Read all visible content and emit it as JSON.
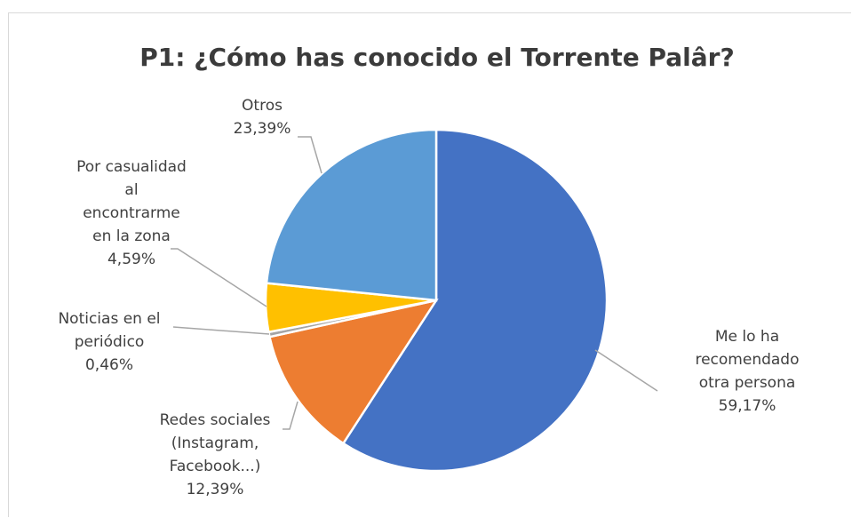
{
  "chart_data": {
    "type": "pie",
    "title": "P1: ¿Cómo has conocido el Torrente Palâr?",
    "slices": [
      {
        "label": "Me lo ha recomendado otra persona",
        "label_lines": [
          "Me lo ha",
          "recomendado",
          "otra persona"
        ],
        "value": 59.17,
        "display": "59,17%",
        "color": "#4472C4"
      },
      {
        "label": "Redes sociales (Instagram, Facebook...)",
        "label_lines": [
          "Redes sociales",
          "(Instagram,",
          "Facebook...)"
        ],
        "value": 12.39,
        "display": "12,39%",
        "color": "#ED7D31"
      },
      {
        "label": "Noticias en el periódico",
        "label_lines": [
          "Noticias en el",
          "periódico"
        ],
        "value": 0.46,
        "display": "0,46%",
        "color": "#A5A5A5"
      },
      {
        "label": "Por casualidad al encontrarme en la zona",
        "label_lines": [
          "Por casualidad",
          "al",
          "encontrarme",
          "en la zona"
        ],
        "value": 4.59,
        "display": "4,59%",
        "color": "#FFC000"
      },
      {
        "label": "Otros",
        "label_lines": [
          "Otros"
        ],
        "value": 23.39,
        "display": "23,39%",
        "color": "#5B9BD5"
      }
    ]
  }
}
